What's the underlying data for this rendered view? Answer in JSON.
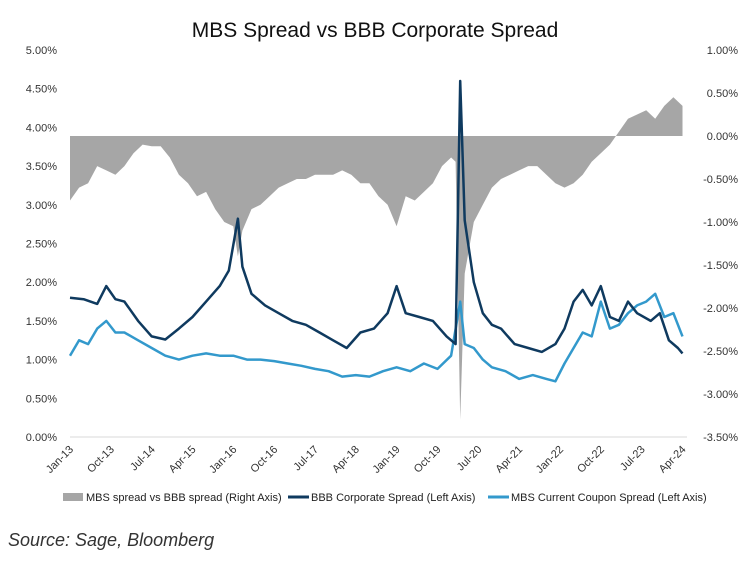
{
  "chart_data": {
    "type": "line",
    "title": "MBS Spread vs BBB Corporate Spread",
    "xlabel": "",
    "ylabel_left": "",
    "ylabel_right": "",
    "x_start": "2013-01",
    "x_end": "2024-05",
    "x_tick_labels": [
      "Jan-13",
      "Oct-13",
      "Jul-14",
      "Apr-15",
      "Jan-16",
      "Oct-16",
      "Jul-17",
      "Apr-18",
      "Jan-19",
      "Oct-19",
      "Jul-20",
      "Apr-21",
      "Jan-22",
      "Oct-22",
      "Jul-23",
      "Apr-24"
    ],
    "y_left": {
      "min": 0,
      "max": 5,
      "step": 0.5,
      "tick_labels": [
        "0.00%",
        "0.50%",
        "1.00%",
        "1.50%",
        "2.00%",
        "2.50%",
        "3.00%",
        "3.50%",
        "4.00%",
        "4.50%",
        "5.00%"
      ]
    },
    "y_right": {
      "min": -3.5,
      "max": 1.0,
      "step": 0.5,
      "tick_labels": [
        "-3.50%",
        "-3.00%",
        "-2.50%",
        "-2.00%",
        "-1.50%",
        "-1.00%",
        "-0.50%",
        "0.00%",
        "0.50%",
        "1.00%"
      ]
    },
    "grid": false,
    "legend_position": "bottom",
    "series": [
      {
        "name": "MBS spread vs BBB spread (Right Axis)",
        "kind": "area",
        "axis": "right",
        "color": "#a6a6a6",
        "points": [
          [
            "2013-01",
            -0.75
          ],
          [
            "2013-03",
            -0.6
          ],
          [
            "2013-05",
            -0.55
          ],
          [
            "2013-07",
            -0.35
          ],
          [
            "2013-09",
            -0.4
          ],
          [
            "2013-11",
            -0.45
          ],
          [
            "2014-01",
            -0.35
          ],
          [
            "2014-03",
            -0.2
          ],
          [
            "2014-05",
            -0.1
          ],
          [
            "2014-07",
            -0.12
          ],
          [
            "2014-09",
            -0.12
          ],
          [
            "2014-11",
            -0.25
          ],
          [
            "2015-01",
            -0.45
          ],
          [
            "2015-03",
            -0.55
          ],
          [
            "2015-05",
            -0.7
          ],
          [
            "2015-07",
            -0.65
          ],
          [
            "2015-09",
            -0.85
          ],
          [
            "2015-11",
            -1.0
          ],
          [
            "2016-01",
            -1.05
          ],
          [
            "2016-02",
            -1.4
          ],
          [
            "2016-03",
            -1.1
          ],
          [
            "2016-05",
            -0.85
          ],
          [
            "2016-07",
            -0.8
          ],
          [
            "2016-09",
            -0.7
          ],
          [
            "2016-11",
            -0.6
          ],
          [
            "2017-01",
            -0.55
          ],
          [
            "2017-03",
            -0.5
          ],
          [
            "2017-05",
            -0.5
          ],
          [
            "2017-07",
            -0.45
          ],
          [
            "2017-09",
            -0.45
          ],
          [
            "2017-11",
            -0.45
          ],
          [
            "2018-01",
            -0.4
          ],
          [
            "2018-03",
            -0.45
          ],
          [
            "2018-05",
            -0.55
          ],
          [
            "2018-07",
            -0.55
          ],
          [
            "2018-09",
            -0.7
          ],
          [
            "2018-11",
            -0.8
          ],
          [
            "2019-01",
            -1.05
          ],
          [
            "2019-03",
            -0.7
          ],
          [
            "2019-05",
            -0.75
          ],
          [
            "2019-07",
            -0.65
          ],
          [
            "2019-09",
            -0.55
          ],
          [
            "2019-11",
            -0.35
          ],
          [
            "2020-01",
            -0.25
          ],
          [
            "2020-02",
            -0.3
          ],
          [
            "2020-03",
            -3.3
          ],
          [
            "2020-04",
            -1.6
          ],
          [
            "2020-06",
            -1.0
          ],
          [
            "2020-08",
            -0.8
          ],
          [
            "2020-10",
            -0.6
          ],
          [
            "2020-12",
            -0.5
          ],
          [
            "2021-02",
            -0.45
          ],
          [
            "2021-04",
            -0.4
          ],
          [
            "2021-06",
            -0.35
          ],
          [
            "2021-08",
            -0.35
          ],
          [
            "2021-10",
            -0.45
          ],
          [
            "2021-12",
            -0.55
          ],
          [
            "2022-02",
            -0.6
          ],
          [
            "2022-04",
            -0.55
          ],
          [
            "2022-06",
            -0.45
          ],
          [
            "2022-08",
            -0.3
          ],
          [
            "2022-10",
            -0.2
          ],
          [
            "2022-12",
            -0.1
          ],
          [
            "2023-02",
            0.05
          ],
          [
            "2023-04",
            0.2
          ],
          [
            "2023-06",
            0.25
          ],
          [
            "2023-08",
            0.3
          ],
          [
            "2023-10",
            0.2
          ],
          [
            "2023-12",
            0.35
          ],
          [
            "2024-02",
            0.45
          ],
          [
            "2024-04",
            0.35
          ]
        ]
      },
      {
        "name": "BBB Corporate Spread (Left Axis)",
        "kind": "line",
        "axis": "left",
        "color": "#0f3a5f",
        "points": [
          [
            "2013-01",
            1.8
          ],
          [
            "2013-04",
            1.78
          ],
          [
            "2013-07",
            1.72
          ],
          [
            "2013-09",
            1.95
          ],
          [
            "2013-11",
            1.78
          ],
          [
            "2014-01",
            1.75
          ],
          [
            "2014-04",
            1.5
          ],
          [
            "2014-07",
            1.3
          ],
          [
            "2014-10",
            1.26
          ],
          [
            "2015-01",
            1.4
          ],
          [
            "2015-04",
            1.55
          ],
          [
            "2015-07",
            1.75
          ],
          [
            "2015-10",
            1.95
          ],
          [
            "2015-12",
            2.15
          ],
          [
            "2016-02",
            2.82
          ],
          [
            "2016-03",
            2.2
          ],
          [
            "2016-05",
            1.85
          ],
          [
            "2016-08",
            1.7
          ],
          [
            "2016-11",
            1.6
          ],
          [
            "2017-02",
            1.5
          ],
          [
            "2017-05",
            1.45
          ],
          [
            "2017-08",
            1.35
          ],
          [
            "2017-11",
            1.25
          ],
          [
            "2018-02",
            1.15
          ],
          [
            "2018-05",
            1.35
          ],
          [
            "2018-08",
            1.4
          ],
          [
            "2018-11",
            1.6
          ],
          [
            "2019-01",
            1.95
          ],
          [
            "2019-03",
            1.6
          ],
          [
            "2019-06",
            1.55
          ],
          [
            "2019-09",
            1.5
          ],
          [
            "2019-12",
            1.3
          ],
          [
            "2020-02",
            1.2
          ],
          [
            "2020-03",
            4.6
          ],
          [
            "2020-04",
            2.8
          ],
          [
            "2020-06",
            2.0
          ],
          [
            "2020-08",
            1.6
          ],
          [
            "2020-10",
            1.45
          ],
          [
            "2020-12",
            1.4
          ],
          [
            "2021-03",
            1.2
          ],
          [
            "2021-06",
            1.15
          ],
          [
            "2021-09",
            1.1
          ],
          [
            "2021-12",
            1.2
          ],
          [
            "2022-02",
            1.4
          ],
          [
            "2022-04",
            1.75
          ],
          [
            "2022-06",
            1.9
          ],
          [
            "2022-08",
            1.7
          ],
          [
            "2022-10",
            1.95
          ],
          [
            "2022-12",
            1.55
          ],
          [
            "2023-02",
            1.5
          ],
          [
            "2023-04",
            1.75
          ],
          [
            "2023-06",
            1.6
          ],
          [
            "2023-09",
            1.5
          ],
          [
            "2023-11",
            1.6
          ],
          [
            "2024-01",
            1.25
          ],
          [
            "2024-03",
            1.15
          ],
          [
            "2024-04",
            1.08
          ]
        ]
      },
      {
        "name": "MBS Current Coupon Spread (Left Axis)",
        "kind": "line",
        "axis": "left",
        "color": "#3399cc",
        "points": [
          [
            "2013-01",
            1.05
          ],
          [
            "2013-03",
            1.25
          ],
          [
            "2013-05",
            1.2
          ],
          [
            "2013-07",
            1.4
          ],
          [
            "2013-09",
            1.5
          ],
          [
            "2013-11",
            1.35
          ],
          [
            "2014-01",
            1.35
          ],
          [
            "2014-04",
            1.25
          ],
          [
            "2014-07",
            1.15
          ],
          [
            "2014-10",
            1.05
          ],
          [
            "2015-01",
            1.0
          ],
          [
            "2015-04",
            1.05
          ],
          [
            "2015-07",
            1.08
          ],
          [
            "2015-10",
            1.05
          ],
          [
            "2016-01",
            1.05
          ],
          [
            "2016-04",
            1.0
          ],
          [
            "2016-07",
            1.0
          ],
          [
            "2016-10",
            0.98
          ],
          [
            "2017-01",
            0.95
          ],
          [
            "2017-04",
            0.92
          ],
          [
            "2017-07",
            0.88
          ],
          [
            "2017-10",
            0.85
          ],
          [
            "2018-01",
            0.78
          ],
          [
            "2018-04",
            0.8
          ],
          [
            "2018-07",
            0.78
          ],
          [
            "2018-10",
            0.85
          ],
          [
            "2019-01",
            0.9
          ],
          [
            "2019-04",
            0.85
          ],
          [
            "2019-07",
            0.95
          ],
          [
            "2019-10",
            0.88
          ],
          [
            "2020-01",
            1.05
          ],
          [
            "2020-03",
            1.75
          ],
          [
            "2020-04",
            1.2
          ],
          [
            "2020-06",
            1.15
          ],
          [
            "2020-08",
            1.0
          ],
          [
            "2020-10",
            0.9
          ],
          [
            "2021-01",
            0.85
          ],
          [
            "2021-04",
            0.75
          ],
          [
            "2021-07",
            0.8
          ],
          [
            "2021-10",
            0.75
          ],
          [
            "2021-12",
            0.72
          ],
          [
            "2022-02",
            0.95
          ],
          [
            "2022-04",
            1.15
          ],
          [
            "2022-06",
            1.35
          ],
          [
            "2022-08",
            1.3
          ],
          [
            "2022-10",
            1.75
          ],
          [
            "2022-12",
            1.4
          ],
          [
            "2023-02",
            1.45
          ],
          [
            "2023-04",
            1.6
          ],
          [
            "2023-06",
            1.7
          ],
          [
            "2023-08",
            1.75
          ],
          [
            "2023-10",
            1.85
          ],
          [
            "2023-12",
            1.55
          ],
          [
            "2024-02",
            1.6
          ],
          [
            "2024-04",
            1.3
          ]
        ]
      }
    ]
  },
  "source": "Source: Sage, Bloomberg"
}
